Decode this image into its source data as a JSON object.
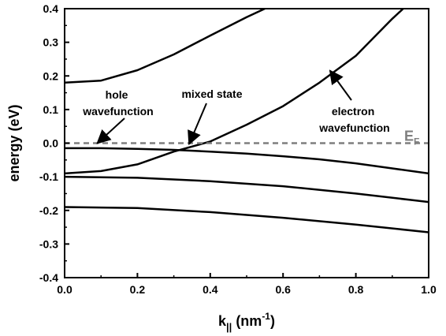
{
  "chart_data": {
    "type": "line",
    "title": "",
    "xlabel": {
      "main": "k",
      "sub": "||",
      "unit_open": " (nm",
      "unit_sup": "-1",
      "unit_close": ")"
    },
    "ylabel": "energy (eV)",
    "xlim": [
      0.0,
      1.0
    ],
    "ylim": [
      -0.4,
      0.4
    ],
    "x_ticks": [
      0.0,
      0.2,
      0.4,
      0.6,
      0.8,
      1.0
    ],
    "x_tick_labels": [
      "0.0",
      "0.2",
      "0.4",
      "0.6",
      "0.8",
      "1.0"
    ],
    "y_ticks": [
      -0.4,
      -0.3,
      -0.2,
      -0.1,
      0.0,
      0.1,
      0.2,
      0.3,
      0.4
    ],
    "y_tick_labels": [
      "-0.4",
      "-0.3",
      "-0.2",
      "-0.1",
      "0.0",
      "0.1",
      "0.2",
      "0.3",
      "0.4"
    ],
    "grid": false,
    "series": [
      {
        "x": [
          0.0,
          0.1,
          0.2,
          0.3,
          0.4,
          0.5,
          0.55
        ],
        "y": [
          0.18,
          0.186,
          0.217,
          0.264,
          0.32,
          0.375,
          0.4
        ]
      },
      {
        "x": [
          0.0,
          0.1,
          0.2,
          0.3,
          0.4,
          0.5,
          0.6,
          0.7,
          0.8,
          0.9,
          0.93
        ],
        "y": [
          -0.09,
          -0.083,
          -0.063,
          -0.025,
          0.005,
          0.055,
          0.11,
          0.18,
          0.26,
          0.37,
          0.4
        ]
      },
      {
        "x": [
          0.0,
          0.1,
          0.2,
          0.3,
          0.4,
          0.5,
          0.6,
          0.7,
          0.8,
          0.9,
          1.0
        ],
        "y": [
          -0.015,
          -0.015,
          -0.017,
          -0.02,
          -0.025,
          -0.031,
          -0.039,
          -0.048,
          -0.06,
          -0.075,
          -0.09
        ]
      },
      {
        "x": [
          0.0,
          0.2,
          0.4,
          0.6,
          0.8,
          1.0
        ],
        "y": [
          -0.1,
          -0.103,
          -0.113,
          -0.128,
          -0.15,
          -0.175
        ]
      },
      {
        "x": [
          0.0,
          0.2,
          0.4,
          0.6,
          0.8,
          1.0
        ],
        "y": [
          -0.19,
          -0.193,
          -0.205,
          -0.222,
          -0.242,
          -0.265
        ]
      }
    ],
    "fermi_level": {
      "label": "E",
      "label_sub": "F",
      "y": 0.0,
      "color": "#7f7f7f",
      "style": "dashed"
    },
    "annotations": [
      {
        "lines": [
          "hole",
          "wavefunction"
        ],
        "arrow_to": [
          0.09,
          0.0
        ]
      },
      {
        "lines": [
          "mixed state"
        ],
        "arrow_to": [
          0.34,
          0.0
        ]
      },
      {
        "lines": [
          "electron",
          "wavefunction"
        ],
        "arrow_to": [
          0.74,
          0.22
        ]
      }
    ]
  }
}
